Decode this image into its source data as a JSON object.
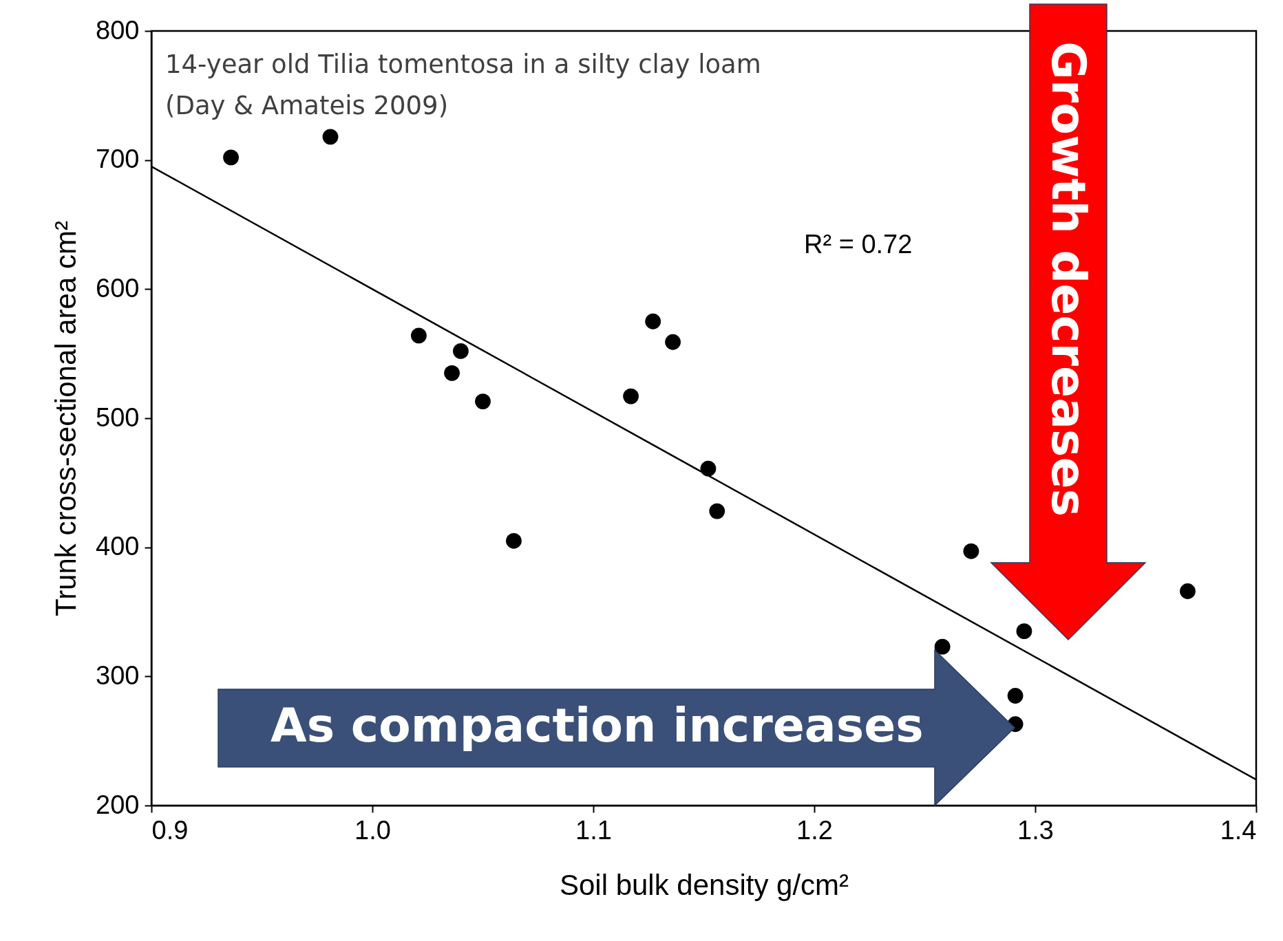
{
  "chart_data": {
    "type": "scatter",
    "xlabel": "Soil bulk density g/cm²",
    "ylabel": "Trunk cross-sectional area cm²",
    "xlim": [
      0.9,
      1.4
    ],
    "xticks": [
      0.9,
      {
        "value": 1.0,
        "label": "1.0"
      },
      1.1,
      1.2,
      1.3,
      1.4
    ],
    "ylim": [
      200,
      800
    ],
    "yticks": [
      200,
      300,
      400,
      500,
      600,
      700,
      800
    ],
    "grid": false,
    "annotations": [
      "14-year old Tilia tomentosa in a silty clay loam",
      "(Day & Amateis 2009)",
      "R² = 0.72",
      "Growth decreases",
      "As compaction increases"
    ],
    "series": [
      {
        "color": "#000000",
        "marker": "circle",
        "x": [
          0.936,
          0.981,
          1.021,
          1.04,
          1.036,
          1.05,
          1.064,
          1.117,
          1.127,
          1.136,
          1.152,
          1.156,
          1.271,
          1.258,
          1.295,
          1.291,
          1.291,
          1.369
        ],
        "values": [
          702,
          718,
          564,
          552,
          535,
          513,
          405,
          517,
          575,
          559,
          461,
          428,
          397,
          323,
          335,
          285,
          263,
          366
        ]
      },
      {
        "type": "line",
        "color": "#000000",
        "line_style": "solid",
        "marker": "none",
        "x": [
          0.9,
          1.4
        ],
        "values": [
          695,
          220
        ]
      }
    ]
  }
}
